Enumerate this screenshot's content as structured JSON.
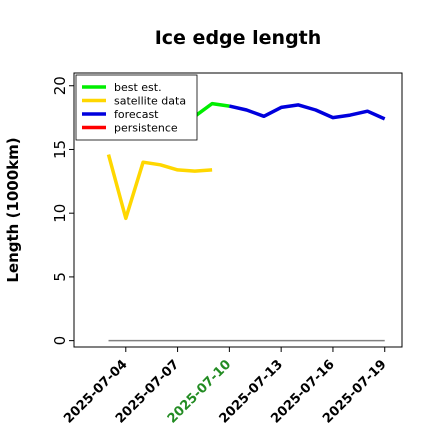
{
  "chart_data": {
    "type": "line",
    "title": "Ice edge length",
    "ylabel": "Length (1000km)",
    "xlabel": "",
    "ylim": [
      -0.5,
      21
    ],
    "xlim": [
      "2025-07-01",
      "2025-07-20"
    ],
    "yticks": [
      0,
      5,
      10,
      15,
      20
    ],
    "xticks": [
      {
        "date": "2025-07-04",
        "label": "2025-07-04",
        "color": "#000000"
      },
      {
        "date": "2025-07-07",
        "label": "2025-07-07",
        "color": "#000000"
      },
      {
        "date": "2025-07-10",
        "label": "2025-07-10",
        "color": "#228b22"
      },
      {
        "date": "2025-07-13",
        "label": "2025-07-13",
        "color": "#000000"
      },
      {
        "date": "2025-07-16",
        "label": "2025-07-16",
        "color": "#000000"
      },
      {
        "date": "2025-07-19",
        "label": "2025-07-19",
        "color": "#000000"
      }
    ],
    "legend_position": "upper-left",
    "series": [
      {
        "name": "best est.",
        "color": "#00ee00",
        "x": [
          "2025-07-08",
          "2025-07-09",
          "2025-07-10"
        ],
        "y": [
          17.6,
          18.6,
          18.4
        ]
      },
      {
        "name": "satellite data",
        "color": "#ffd700",
        "x": [
          "2025-07-03",
          "2025-07-04",
          "2025-07-05",
          "2025-07-06",
          "2025-07-07",
          "2025-07-08",
          "2025-07-09"
        ],
        "y": [
          14.6,
          9.6,
          14.0,
          13.8,
          13.4,
          13.3,
          13.4
        ]
      },
      {
        "name": "forecast",
        "color": "#0000dd",
        "x": [
          "2025-07-10",
          "2025-07-11",
          "2025-07-12",
          "2025-07-13",
          "2025-07-14",
          "2025-07-15",
          "2025-07-16",
          "2025-07-17",
          "2025-07-18",
          "2025-07-19"
        ],
        "y": [
          18.4,
          18.1,
          17.6,
          18.3,
          18.5,
          18.1,
          17.5,
          17.7,
          18.0,
          17.4
        ]
      },
      {
        "name": "persistence",
        "color": "#ff0000",
        "x": [],
        "y": []
      }
    ],
    "reference_line": {
      "y": 0,
      "color": "#808080",
      "x": [
        "2025-07-03",
        "2025-07-19"
      ]
    }
  }
}
